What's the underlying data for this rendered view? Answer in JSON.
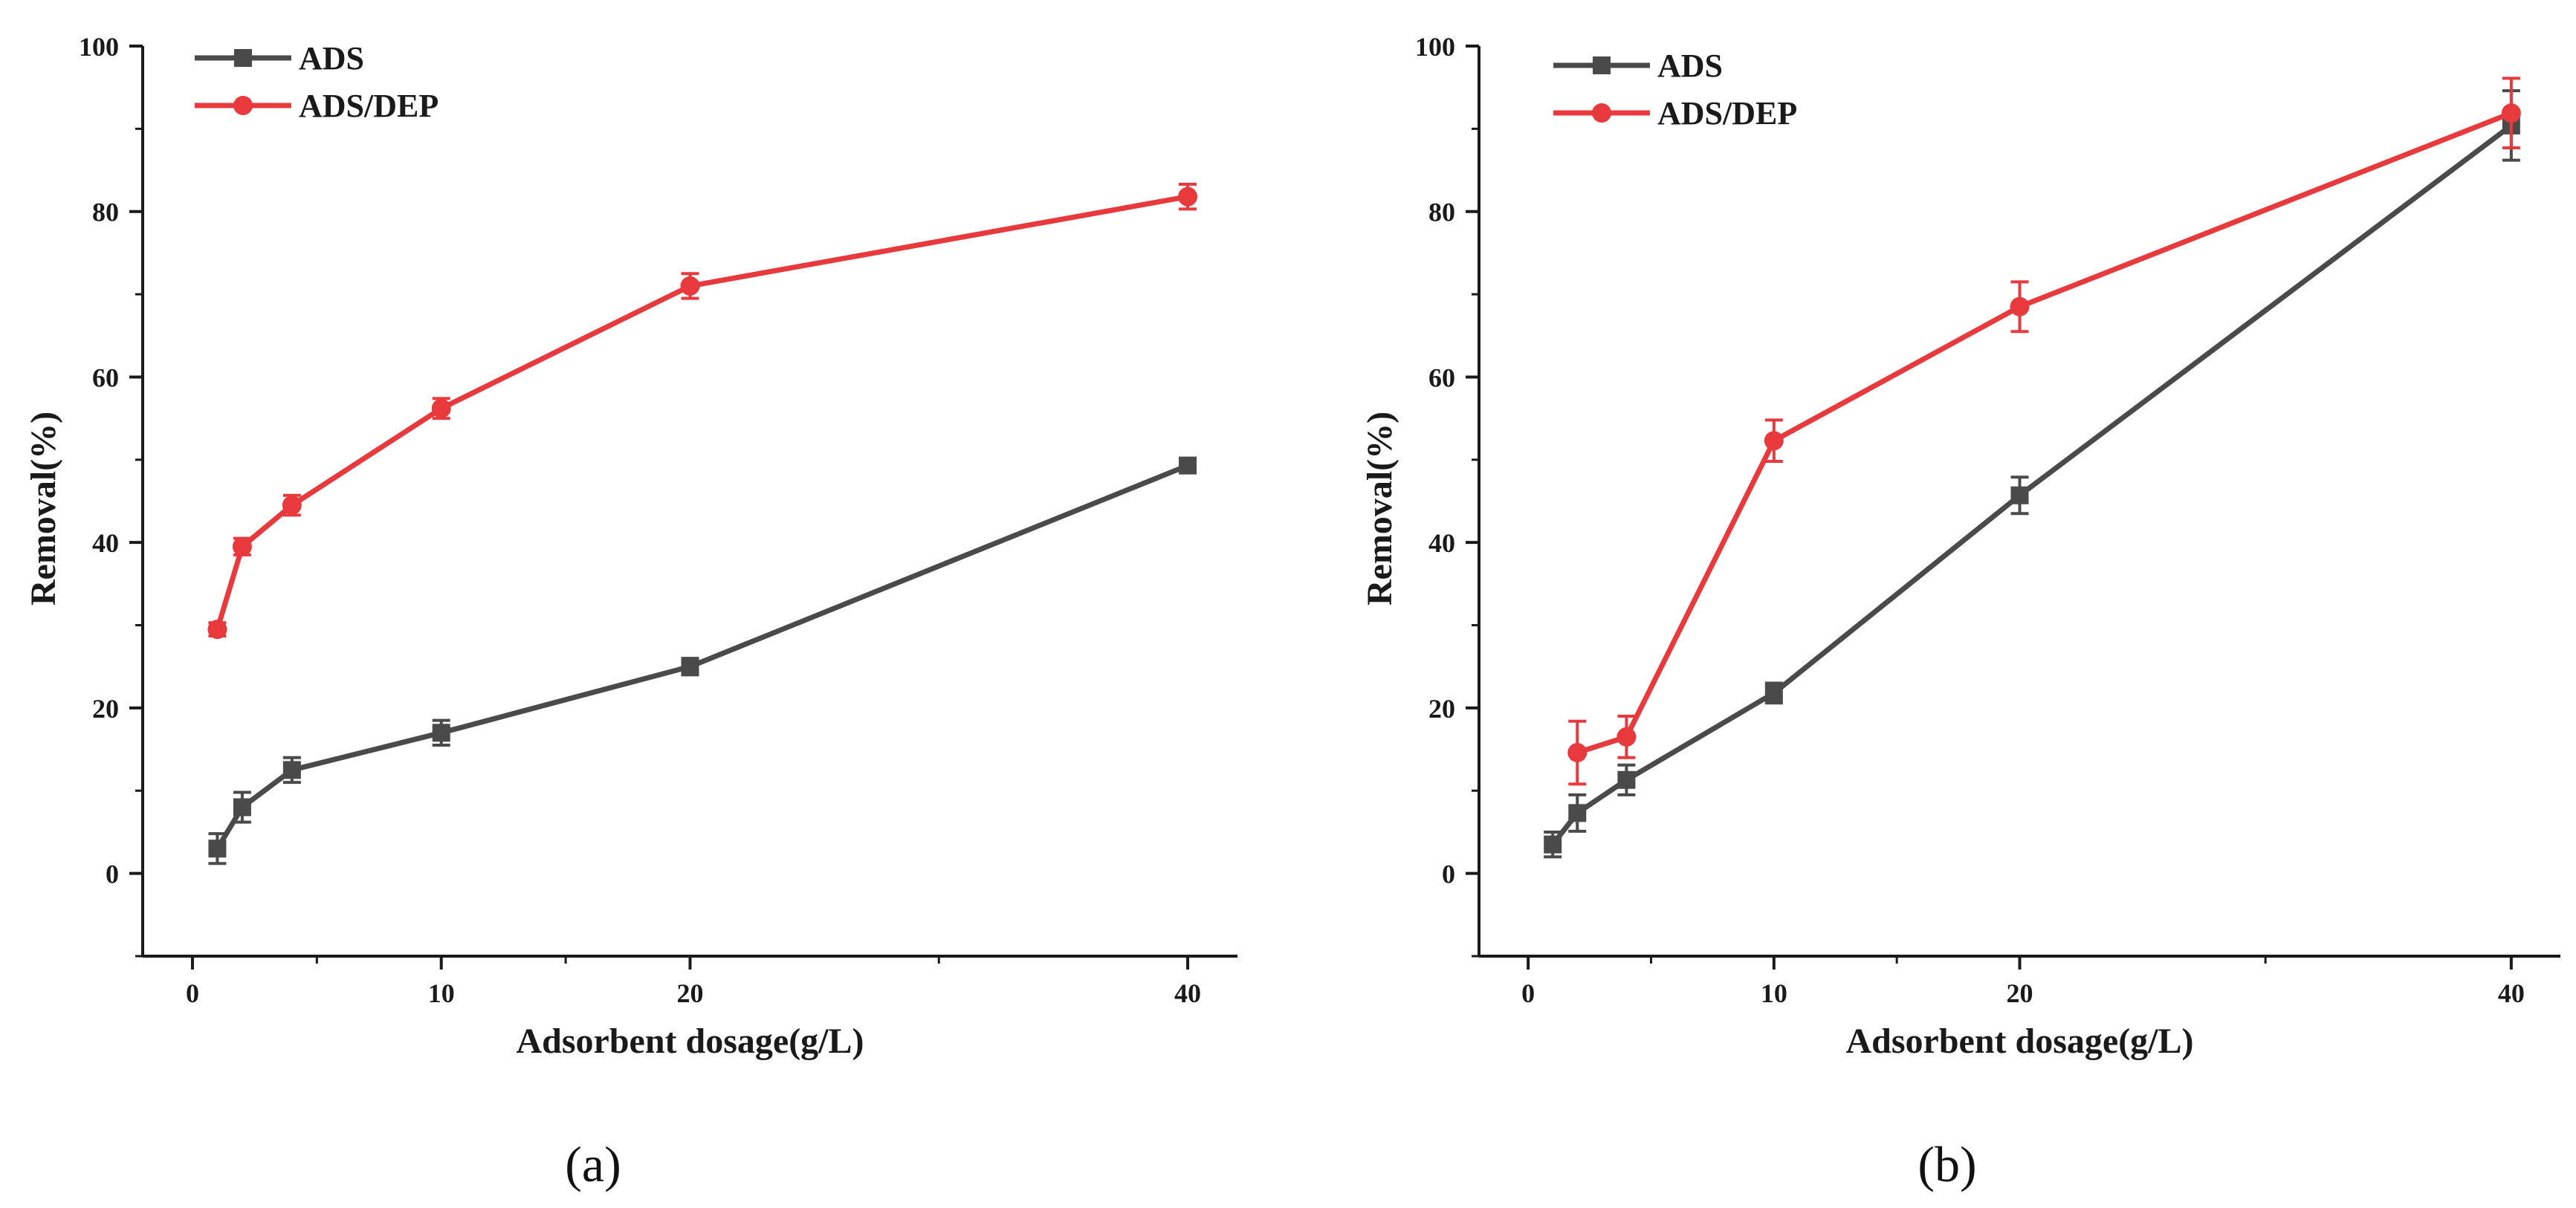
{
  "colors": {
    "ads": "#4a4a4a",
    "ads_dep": "#e8393d",
    "axis": "#1a1a1a"
  },
  "chart_data": [
    {
      "type": "line",
      "panel_label": "(a)",
      "xlabel": "Adsorbent dosage(g/L)",
      "ylabel": "Removal(%)",
      "xlim": [
        -2,
        42
      ],
      "ylim": [
        -10,
        100
      ],
      "xticks": [
        0,
        10,
        20,
        40
      ],
      "yticks": [
        0,
        20,
        40,
        60,
        80,
        100
      ],
      "legend_position": "top-left",
      "x": [
        1,
        2,
        4,
        10,
        20,
        40
      ],
      "series": [
        {
          "name": "ADS",
          "marker": "square",
          "values": [
            3,
            8,
            12.5,
            17,
            25,
            49.3
          ],
          "errors": [
            1.8,
            1.8,
            1.5,
            1.5,
            1.0,
            0.8
          ]
        },
        {
          "name": "ADS/DEP",
          "marker": "circle",
          "values": [
            29.5,
            39.5,
            44.5,
            56.2,
            71,
            81.8
          ],
          "errors": [
            0.8,
            1.0,
            1.2,
            1.2,
            1.5,
            1.5
          ]
        }
      ]
    },
    {
      "type": "line",
      "panel_label": "(b)",
      "xlabel": "Adsorbent dosage(g/L)",
      "ylabel": "Removal(%)",
      "xlim": [
        -2,
        42
      ],
      "ylim": [
        -10,
        100
      ],
      "xticks": [
        0,
        10,
        20,
        40
      ],
      "yticks": [
        0,
        20,
        40,
        60,
        80,
        100
      ],
      "legend_position": "top-left",
      "x_ads": [
        1,
        2,
        4,
        10,
        20,
        40
      ],
      "x_dep": [
        2,
        4,
        10,
        20,
        40
      ],
      "series": [
        {
          "name": "ADS",
          "marker": "square",
          "x": [
            1,
            2,
            4,
            10,
            20,
            40
          ],
          "values": [
            3.5,
            7.3,
            11.3,
            21.8,
            45.7,
            90.4
          ],
          "errors": [
            1.5,
            2.2,
            1.8,
            1.2,
            2.2,
            4.2
          ]
        },
        {
          "name": "ADS/DEP",
          "marker": "circle",
          "x": [
            2,
            4,
            10,
            20,
            40
          ],
          "values": [
            14.6,
            16.5,
            52.3,
            68.5,
            91.9
          ],
          "errors": [
            3.8,
            2.5,
            2.5,
            3.0,
            4.2
          ]
        }
      ]
    }
  ]
}
